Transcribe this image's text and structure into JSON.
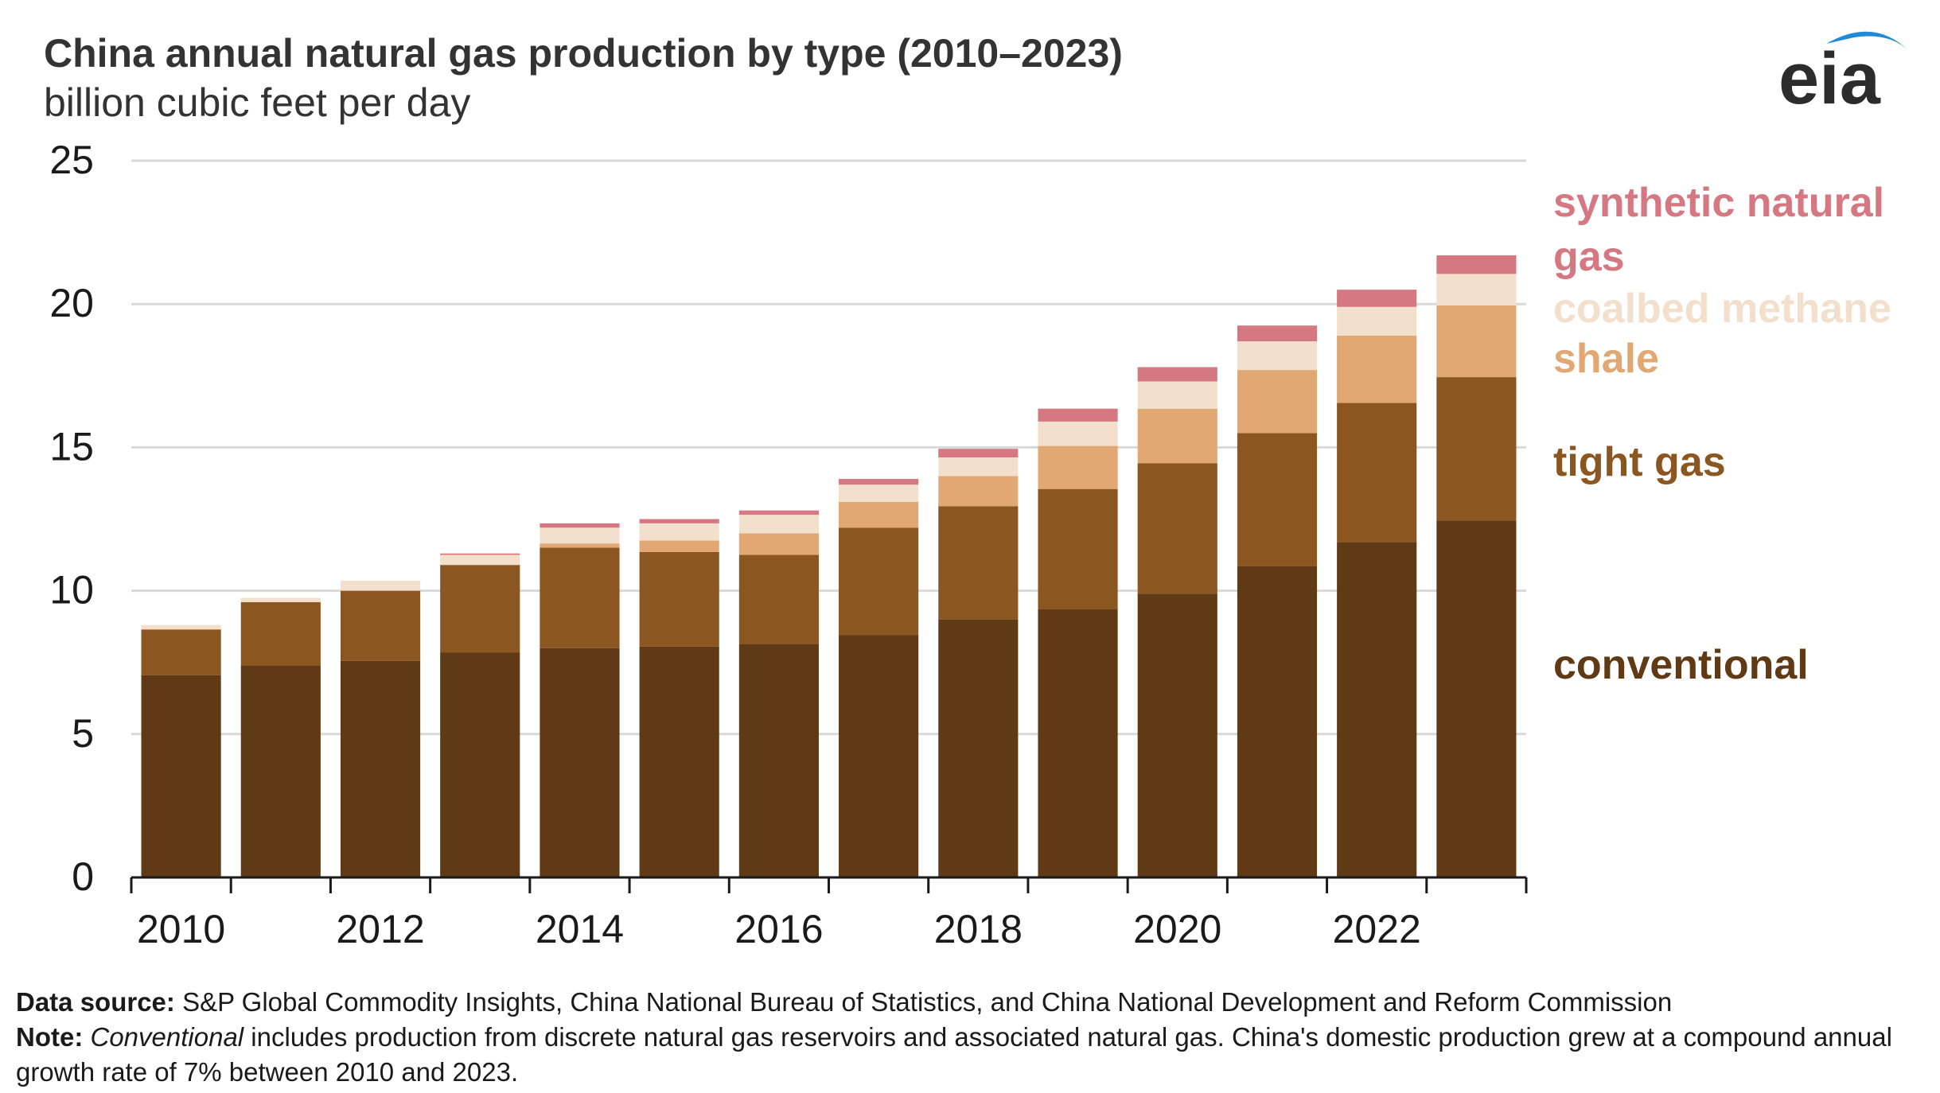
{
  "header": {
    "title": "China annual natural gas production by type (2010–2023)",
    "subtitle": "billion cubic feet per day",
    "logo_text": "eia"
  },
  "colors": {
    "conventional": "#603915",
    "tight_gas": "#8c5620",
    "shale": "#e2a874",
    "coalbed_methane": "#f2e0cc",
    "synthetic_natural_gas": "#d57882",
    "gridline": "#d9d9d9",
    "axis": "#1a1a1a",
    "logo": "#2c2c2c",
    "logo_arc": "#1f8bd6"
  },
  "footer": {
    "source_label": "Data source:",
    "source_text": " S&P Global Commodity Insights, China National Bureau of Statistics, and China National Development and Reform Commission",
    "note_label": "Note:",
    "note_italic": "Conventional",
    "note_text": " includes production from discrete natural gas reservoirs and associated natural gas. China's domestic production grew at a compound annual growth rate of 7% between 2010 and 2023."
  },
  "chart_data": {
    "type": "bar",
    "stacked": true,
    "title": "China annual natural gas production by type (2010–2023)",
    "subtitle": "billion cubic feet per day",
    "ylim": [
      0,
      25
    ],
    "yticks": [
      0,
      5,
      10,
      15,
      20,
      25
    ],
    "grid": true,
    "legend": "right, inline labels",
    "x": [
      2010,
      2011,
      2012,
      2013,
      2014,
      2015,
      2016,
      2017,
      2018,
      2019,
      2020,
      2021,
      2022,
      2023
    ],
    "xtick_labels": [
      "2010",
      "2012",
      "2014",
      "2016",
      "2018",
      "2020",
      "2022"
    ],
    "series": [
      {
        "name": "conventional",
        "legend_lines": [
          "conventional"
        ],
        "color_key": "conventional",
        "values": [
          7.05,
          7.4,
          7.55,
          7.85,
          8.0,
          8.05,
          8.15,
          8.45,
          9.0,
          9.35,
          9.9,
          10.85,
          11.7,
          12.45
        ]
      },
      {
        "name": "tight gas",
        "legend_lines": [
          "tight gas"
        ],
        "color_key": "tight_gas",
        "values": [
          1.6,
          2.2,
          2.45,
          3.05,
          3.5,
          3.3,
          3.1,
          3.75,
          3.95,
          4.2,
          4.55,
          4.65,
          4.85,
          5.0
        ]
      },
      {
        "name": "shale",
        "legend_lines": [
          "shale"
        ],
        "color_key": "shale",
        "values": [
          0,
          0,
          0,
          0,
          0.15,
          0.4,
          0.75,
          0.9,
          1.05,
          1.5,
          1.9,
          2.2,
          2.35,
          2.5
        ]
      },
      {
        "name": "coalbed methane",
        "legend_lines": [
          "coalbed methane"
        ],
        "color_key": "coalbed_methane",
        "values": [
          0.15,
          0.15,
          0.35,
          0.35,
          0.55,
          0.6,
          0.65,
          0.6,
          0.65,
          0.85,
          0.95,
          1.0,
          1.0,
          1.1
        ]
      },
      {
        "name": "synthetic natural gas",
        "legend_lines": [
          "synthetic natural",
          "gas"
        ],
        "color_key": "synthetic_natural_gas",
        "values": [
          0,
          0,
          0,
          0.05,
          0.15,
          0.15,
          0.15,
          0.2,
          0.3,
          0.45,
          0.5,
          0.55,
          0.6,
          0.65
        ]
      }
    ]
  }
}
